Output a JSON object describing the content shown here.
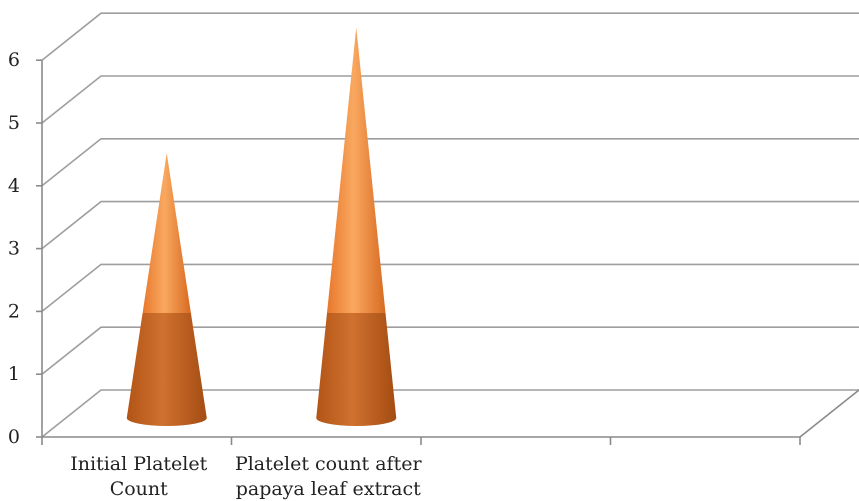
{
  "chart_data": {
    "type": "bar",
    "bar_shape": "cone",
    "categories": [
      "Initial Platelet Count",
      "Platelet count after papaya leaf extract"
    ],
    "category_label_lines": [
      [
        "Initial Platelet",
        "Count"
      ],
      [
        "Platelet count after",
        "papaya leaf extract"
      ]
    ],
    "values": [
      3.9,
      5.9
    ],
    "ylim": [
      0,
      6
    ],
    "y_ticks": [
      "0",
      "1",
      "2",
      "3",
      "4",
      "5",
      "6"
    ],
    "category_slots": 4,
    "grid": true,
    "legend": "none",
    "title": "",
    "xlabel": "",
    "ylabel": ""
  },
  "colors": {
    "cone_light": "#f7a256",
    "cone_mid": "#e8782c",
    "cone_dark": "#b85a18",
    "grid": "#9e9e9e"
  }
}
